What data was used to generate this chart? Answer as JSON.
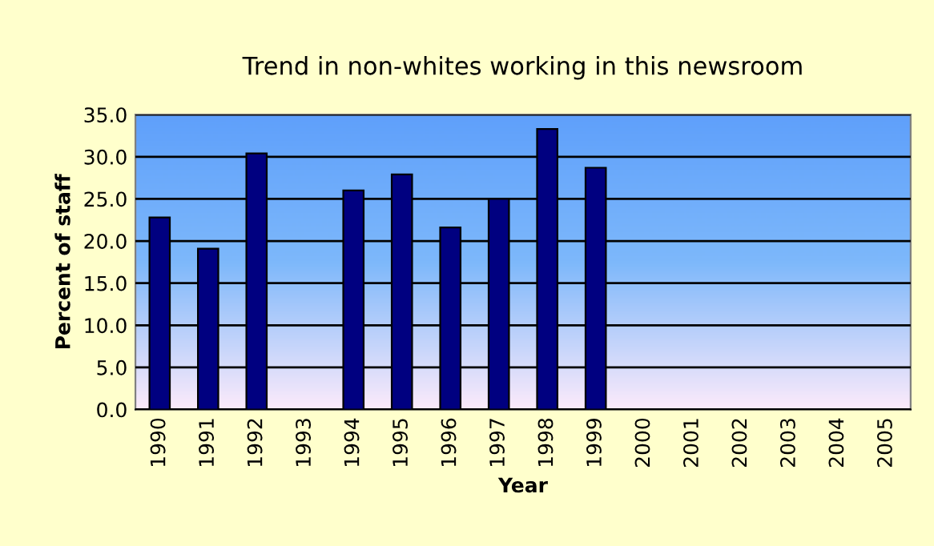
{
  "chart_data": {
    "type": "bar",
    "title": "Trend in non-whites working in this newsroom",
    "xlabel": "Year",
    "ylabel": "Percent of staff",
    "categories": [
      "1990",
      "1991",
      "1992",
      "1993",
      "1994",
      "1995",
      "1996",
      "1997",
      "1998",
      "1999",
      "2000",
      "2001",
      "2002",
      "2003",
      "2004",
      "2005"
    ],
    "values": [
      22.8,
      19.1,
      30.4,
      null,
      26.0,
      27.9,
      21.6,
      25.0,
      33.3,
      28.7,
      null,
      null,
      null,
      null,
      null,
      null
    ],
    "color": "#000080",
    "ylim": [
      0,
      35
    ],
    "yticks": [
      {
        "value": 0,
        "label": "0.0"
      },
      {
        "value": 5,
        "label": "5.0"
      },
      {
        "value": 10,
        "label": "10.0"
      },
      {
        "value": 15,
        "label": "15.0"
      },
      {
        "value": 20,
        "label": "20.0"
      },
      {
        "value": 25,
        "label": "25.0"
      },
      {
        "value": 30,
        "label": "30.0"
      },
      {
        "value": 35,
        "label": "35.0"
      }
    ],
    "grid": "y",
    "legend": false
  }
}
